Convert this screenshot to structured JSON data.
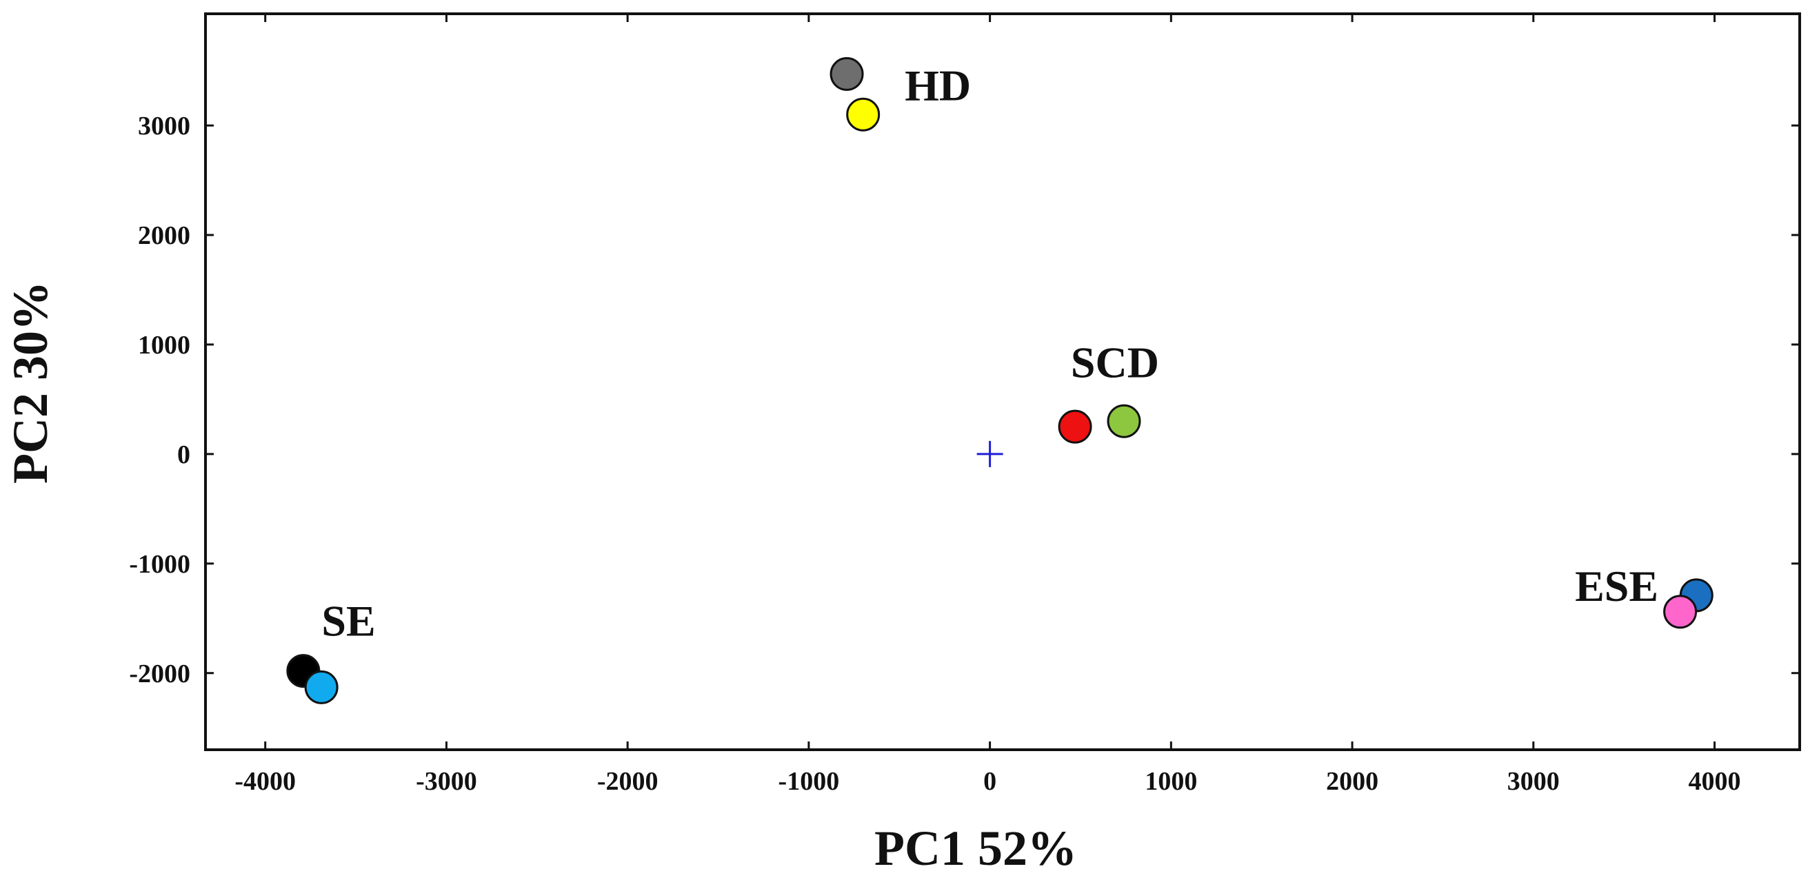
{
  "chart_data": {
    "type": "scatter",
    "xlabel": "PC1  52%",
    "ylabel": "PC2  30%",
    "xlim": [
      -4330,
      4470
    ],
    "ylim": [
      -2700,
      4020
    ],
    "xticks": [
      -4000,
      -3000,
      -2000,
      -1000,
      0,
      1000,
      2000,
      3000,
      4000
    ],
    "yticks": [
      -2000,
      -1000,
      0,
      1000,
      2000,
      3000
    ],
    "grid": false,
    "origin_marker": {
      "x": 0,
      "y": 0,
      "color": "#1f1fd6"
    },
    "points": [
      {
        "x": -790,
        "y": 3470,
        "color": "#6e6e6e"
      },
      {
        "x": -700,
        "y": 3100,
        "color": "#ffff00"
      },
      {
        "x": 470,
        "y": 250,
        "color": "#ee1111"
      },
      {
        "x": 740,
        "y": 300,
        "color": "#8dc63f"
      },
      {
        "x": 3900,
        "y": -1290,
        "color": "#1a6fc0"
      },
      {
        "x": 3810,
        "y": -1440,
        "color": "#ff66cc"
      },
      {
        "x": -3790,
        "y": -1980,
        "color": "#000000"
      },
      {
        "x": -3690,
        "y": -2130,
        "color": "#11aaee"
      }
    ],
    "group_labels": [
      {
        "text": "HD",
        "x": -470,
        "y": 3230,
        "anchor": "start"
      },
      {
        "text": "SCD",
        "x": 690,
        "y": 700,
        "anchor": "middle"
      },
      {
        "text": "ESE",
        "x": 3690,
        "y": -1340,
        "anchor": "end"
      },
      {
        "text": "SE",
        "x": -3540,
        "y": -1660,
        "anchor": "middle"
      }
    ]
  }
}
